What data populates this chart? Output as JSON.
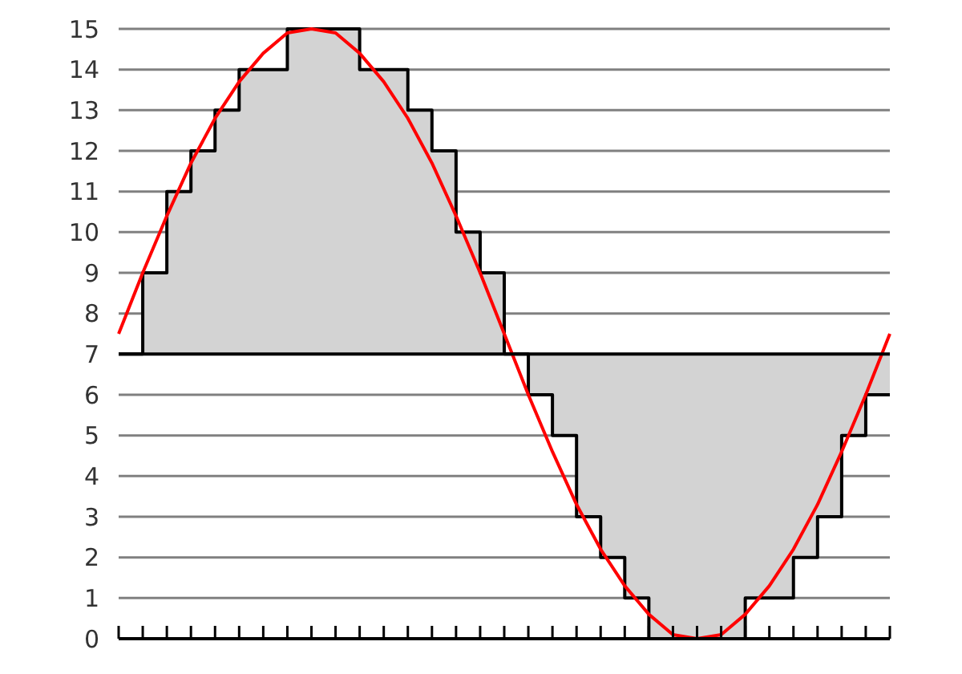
{
  "chart_data": {
    "type": "step",
    "categories": [
      null,
      null,
      null,
      null,
      null,
      null,
      null,
      null,
      null,
      null,
      null,
      null,
      null,
      null,
      null,
      null,
      null,
      null,
      null,
      null,
      null,
      null,
      null,
      null,
      null,
      null,
      null,
      null,
      null,
      null,
      null,
      null,
      null
    ],
    "ylim": [
      0,
      15
    ],
    "yticks": [
      0,
      1,
      2,
      3,
      4,
      5,
      6,
      7,
      8,
      9,
      10,
      11,
      12,
      13,
      14,
      15
    ],
    "grid": "y",
    "tick_labels": "y",
    "ref_lines": [
      {
        "axis": "y",
        "value": 7,
        "color": "#000000"
      }
    ],
    "series": [
      {
        "color": "#000000",
        "values": [
          7,
          9,
          11,
          12,
          13,
          14,
          14,
          15,
          15,
          15,
          14,
          14,
          13,
          12,
          10,
          9,
          7,
          6,
          5,
          3,
          2,
          1,
          0,
          0,
          0,
          0,
          1,
          1,
          2,
          3,
          5,
          6,
          6
        ]
      },
      {
        "type": "line",
        "color": "#ff0000",
        "values": [
          7.5,
          9,
          10.4,
          11.7,
          12.8,
          13.7,
          14.4,
          14.9,
          15,
          14.9,
          14.4,
          13.7,
          12.8,
          11.7,
          10.4,
          9,
          7.5,
          6,
          4.6,
          3.3,
          2.2,
          1.3,
          0.6,
          0.1,
          0,
          0.1,
          0.6,
          1.3,
          2.2,
          3.3,
          4.6,
          6,
          7.5
        ]
      }
    ]
  }
}
